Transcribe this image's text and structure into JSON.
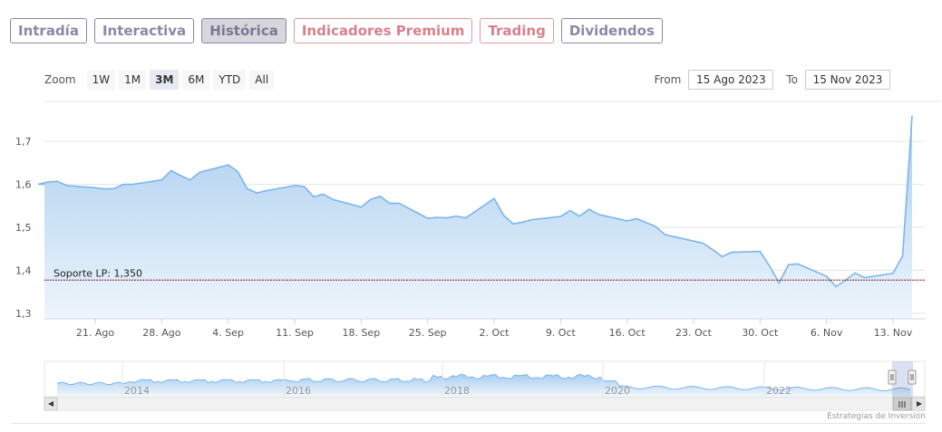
{
  "tabs": [
    {
      "label": "Intradía",
      "active": false,
      "style": "normal"
    },
    {
      "label": "Interactiva",
      "active": false,
      "style": "normal"
    },
    {
      "label": "Histórica",
      "active": true,
      "style": "normal"
    },
    {
      "label": "Indicadores Premium",
      "active": false,
      "style": "premium"
    },
    {
      "label": "Trading",
      "active": false,
      "style": "premium"
    },
    {
      "label": "Dividendos",
      "active": false,
      "style": "normal"
    }
  ],
  "zoom": {
    "label": "Zoom",
    "buttons": [
      "1W",
      "1M",
      "3M",
      "6M",
      "YTD",
      "All"
    ],
    "selected": "3M"
  },
  "range": {
    "from_label": "From",
    "from_value": "15 Ago 2023",
    "to_label": "To",
    "to_value": "15 Nov 2023"
  },
  "credit": "Estrategias de Inversión",
  "colors": {
    "line": "#7cb5ec",
    "area_top": "#a8cdef",
    "area_bottom": "#eef5fc",
    "support": "#8b1a1a",
    "grid": "#e6e6e6"
  },
  "chart_data": {
    "type": "area",
    "title": "",
    "xlabel": "",
    "ylabel": "",
    "ylim": [
      1.3,
      1.75
    ],
    "y_ticks": [
      "1,3",
      "1,4",
      "1,5",
      "1,6",
      "1,7"
    ],
    "y_tick_values": [
      1.3,
      1.4,
      1.5,
      1.6,
      1.7
    ],
    "x_ticks": [
      "21. Ago",
      "28. Ago",
      "4. Sep",
      "11. Sep",
      "18. Sep",
      "25. Sep",
      "2. Oct",
      "9. Oct",
      "16. Oct",
      "23. Oct",
      "30. Oct",
      "6. Nov",
      "13. Nov"
    ],
    "x_tick_dates": [
      "2023-08-21",
      "2023-08-28",
      "2023-09-04",
      "2023-09-11",
      "2023-09-18",
      "2023-09-25",
      "2023-10-02",
      "2023-10-09",
      "2023-10-16",
      "2023-10-23",
      "2023-10-30",
      "2023-11-06",
      "2023-11-13"
    ],
    "x_range": [
      "2023-08-15",
      "2023-11-15"
    ],
    "grid": true,
    "support_line": {
      "label": "Soporte LP: 1,350",
      "value": 1.35
    },
    "series": [
      {
        "x": [
          "2023-08-15",
          "2023-08-16",
          "2023-08-17",
          "2023-08-18",
          "2023-08-21",
          "2023-08-22",
          "2023-08-23",
          "2023-08-24",
          "2023-08-25",
          "2023-08-28",
          "2023-08-29",
          "2023-08-30",
          "2023-08-31",
          "2023-09-01",
          "2023-09-04",
          "2023-09-05",
          "2023-09-06",
          "2023-09-07",
          "2023-09-08",
          "2023-09-11",
          "2023-09-12",
          "2023-09-13",
          "2023-09-14",
          "2023-09-15",
          "2023-09-18",
          "2023-09-19",
          "2023-09-20",
          "2023-09-21",
          "2023-09-22",
          "2023-09-25",
          "2023-09-26",
          "2023-09-27",
          "2023-09-28",
          "2023-09-29",
          "2023-10-02",
          "2023-10-03",
          "2023-10-04",
          "2023-10-05",
          "2023-10-06",
          "2023-10-09",
          "2023-10-10",
          "2023-10-11",
          "2023-10-12",
          "2023-10-13",
          "2023-10-16",
          "2023-10-17",
          "2023-10-18",
          "2023-10-19",
          "2023-10-20",
          "2023-10-23",
          "2023-10-24",
          "2023-10-25",
          "2023-10-26",
          "2023-10-27",
          "2023-10-30",
          "2023-10-31",
          "2023-11-01",
          "2023-11-02",
          "2023-11-03",
          "2023-11-06",
          "2023-11-07",
          "2023-11-08",
          "2023-11-09",
          "2023-11-10",
          "2023-11-13",
          "2023-11-14",
          "2023-11-15"
        ],
        "y": [
          1.6,
          1.605,
          1.607,
          1.597,
          1.592,
          1.589,
          1.59,
          1.6,
          1.6,
          1.61,
          1.632,
          1.62,
          1.61,
          1.628,
          1.645,
          1.63,
          1.59,
          1.58,
          1.585,
          1.597,
          1.595,
          1.571,
          1.577,
          1.565,
          1.547,
          1.565,
          1.572,
          1.556,
          1.556,
          1.521,
          1.523,
          1.522,
          1.526,
          1.522,
          1.567,
          1.528,
          1.508,
          1.512,
          1.518,
          1.525,
          1.539,
          1.526,
          1.542,
          1.53,
          1.515,
          1.52,
          1.511,
          1.502,
          1.483,
          1.468,
          1.463,
          1.448,
          1.432,
          1.442,
          1.444,
          1.41,
          1.371,
          1.413,
          1.415,
          1.386,
          1.362,
          1.377,
          1.394,
          1.383,
          1.393,
          1.433,
          1.76
        ]
      }
    ]
  },
  "navigator": {
    "year_labels": [
      "2014",
      "2016",
      "2018",
      "2020",
      "2022"
    ]
  }
}
